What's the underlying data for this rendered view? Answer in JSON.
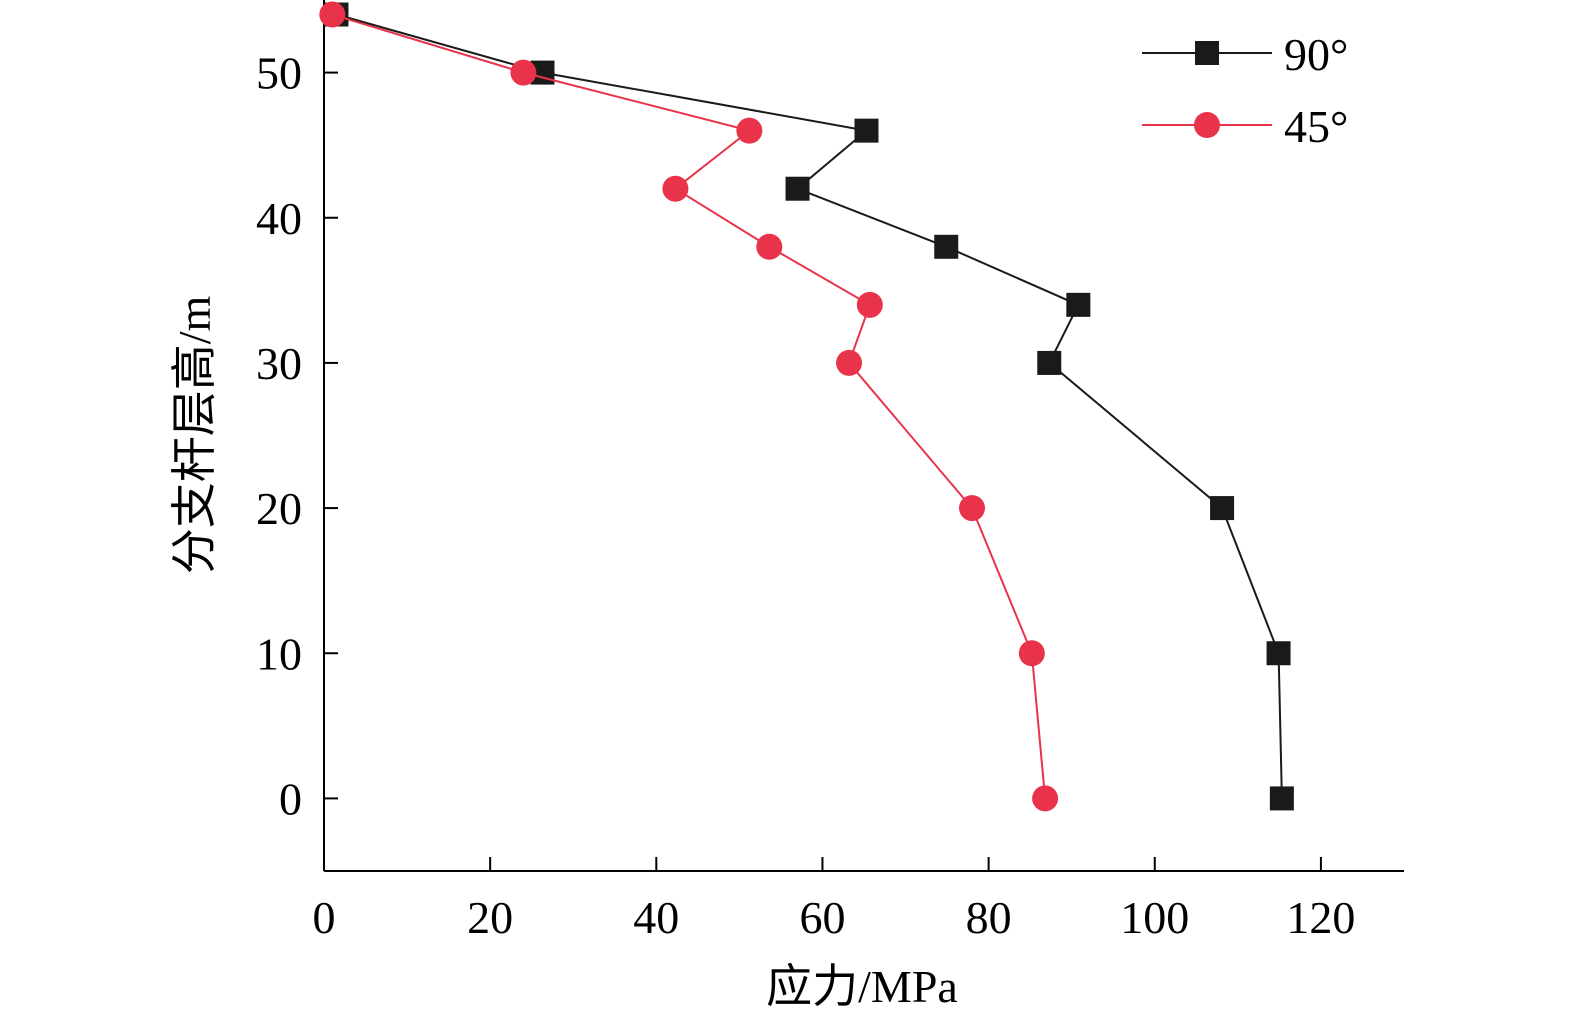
{
  "chart_data": {
    "type": "line",
    "title": "",
    "xlabel": "应力/MPa",
    "ylabel": "分支杆层高/m",
    "xlim": [
      0,
      130
    ],
    "ylim": [
      -5,
      55
    ],
    "xticks": [
      0,
      20,
      40,
      60,
      80,
      100,
      120
    ],
    "yticks": [
      0,
      10,
      20,
      30,
      40,
      50
    ],
    "xtick_labels": [
      "0",
      "20",
      "40",
      "60",
      "80",
      "100",
      "120"
    ],
    "ytick_labels": [
      "0",
      "10",
      "20",
      "30",
      "40",
      "50"
    ],
    "grid": false,
    "legend_position": "top-right",
    "series": [
      {
        "name": "90°",
        "marker": "square",
        "color": "#1a1a1a",
        "points": [
          [
            115.3,
            0
          ],
          [
            114.9,
            10
          ],
          [
            108.1,
            20
          ],
          [
            87.3,
            30
          ],
          [
            90.8,
            34
          ],
          [
            74.9,
            38
          ],
          [
            57.0,
            42
          ],
          [
            65.3,
            46
          ],
          [
            26.3,
            50
          ],
          [
            1.5,
            54
          ]
        ]
      },
      {
        "name": "45°",
        "marker": "circle",
        "color": "#e8334a",
        "points": [
          [
            86.8,
            0
          ],
          [
            85.2,
            10
          ],
          [
            78.0,
            20
          ],
          [
            63.2,
            30
          ],
          [
            65.7,
            34
          ],
          [
            53.6,
            38
          ],
          [
            42.3,
            42
          ],
          [
            51.2,
            46
          ],
          [
            24.0,
            50
          ],
          [
            1.0,
            54
          ]
        ]
      }
    ]
  }
}
